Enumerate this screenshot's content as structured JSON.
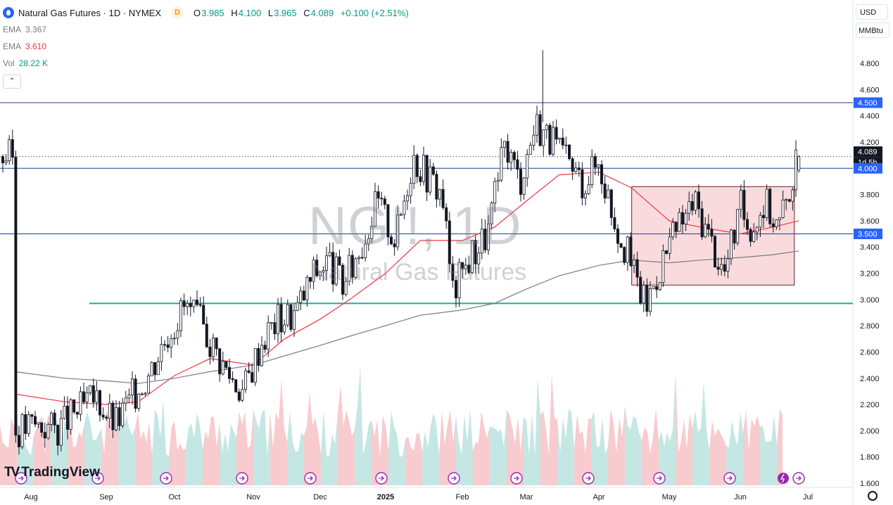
{
  "header": {
    "symbol_title": "Natural Gas Futures · 1D · NYMEX",
    "badge": "D",
    "ohlc": [
      {
        "k": "O",
        "v": "3.985"
      },
      {
        "k": "H",
        "v": "4.100"
      },
      {
        "k": "L",
        "v": "3.965"
      },
      {
        "k": "C",
        "v": "4.089"
      }
    ],
    "change": "+0.100 (+2.51%)"
  },
  "indicators": [
    {
      "name": "EMA",
      "value": "3.367",
      "color": "#787b86"
    },
    {
      "name": "EMA",
      "value": "3.610",
      "color": "#f23645"
    },
    {
      "name": "Vol",
      "value": "28.22 K",
      "color": "#089981"
    }
  ],
  "controls": {
    "currency": "USD",
    "unit": "MMBtu",
    "collapse_glyph": "⌃"
  },
  "watermark": {
    "line1": "NGI!, 1D",
    "line2": "Natural Gas Futures"
  },
  "branding": {
    "logo_mark": "TV",
    "name": "TradingView"
  },
  "chart_data": {
    "type": "candlestick",
    "ylim": [
      1.6,
      4.9
    ],
    "y_ticks": [
      "4.800",
      "4.600",
      "4.400",
      "4.200",
      "4.000",
      "3.800",
      "3.600",
      "3.400",
      "3.200",
      "3.000",
      "2.800",
      "2.600",
      "2.400",
      "2.200",
      "2.000",
      "1.800",
      "1.600"
    ],
    "x_ticks": [
      "Aug",
      "Sep",
      "Oct",
      "Nov",
      "Dec",
      "2025",
      "Feb",
      "Mar",
      "Apr",
      "May",
      "Jun",
      "Jul"
    ],
    "price_labels": [
      {
        "text": "4.500",
        "price": 4.5,
        "color": "#2962ff"
      },
      {
        "text": "4.089",
        "price": 4.089,
        "color": "#131722"
      },
      {
        "text": "1d 5h",
        "price": 4.089,
        "color": "#131722"
      },
      {
        "text": "4.000",
        "price": 4.0,
        "color": "#2962ff"
      },
      {
        "text": "3.500",
        "price": 3.5,
        "color": "#2962ff"
      }
    ],
    "horizontal_lines": [
      {
        "price": 4.5,
        "color": "#1e3f8a"
      },
      {
        "price": 4.0,
        "color": "#1e3f8a"
      },
      {
        "price": 3.5,
        "color": "#1e3f8a"
      },
      {
        "price": 2.97,
        "color": "#26a69a"
      }
    ],
    "rectangle": {
      "from": "Apr 15",
      "to": "Jun 25",
      "top": 3.86,
      "bottom": 3.11,
      "color": "#f7cfd2"
    },
    "close_path": [
      [
        "Jul 25",
        2.0
      ],
      [
        "Aug 2",
        2.05
      ],
      [
        "Aug 12",
        2.02
      ],
      [
        "Aug 20",
        2.15
      ],
      [
        "Aug 28",
        2.25
      ],
      [
        "Sep 5",
        2.05
      ],
      [
        "Sep 12",
        2.25
      ],
      [
        "Sep 20",
        2.45
      ],
      [
        "Sep 28",
        2.75
      ],
      [
        "Oct 5",
        2.95
      ],
      [
        "Oct 12",
        2.8
      ],
      [
        "Oct 20",
        2.5
      ],
      [
        "Oct 28",
        2.3
      ],
      [
        "Nov 5",
        2.7
      ],
      [
        "Nov 12",
        2.85
      ],
      [
        "Nov 20",
        2.9
      ],
      [
        "Nov 28",
        3.2
      ],
      [
        "Dec 5",
        3.3
      ],
      [
        "Dec 12",
        3.1
      ],
      [
        "Dec 20",
        3.4
      ],
      [
        "Dec 28",
        3.75
      ],
      [
        "Jan 5",
        3.45
      ],
      [
        "Jan 12",
        4.1
      ],
      [
        "Jan 18",
        3.95
      ],
      [
        "Jan 24",
        3.8
      ],
      [
        "Jan 28",
        3.05
      ],
      [
        "Feb 5",
        3.35
      ],
      [
        "Feb 12",
        3.5
      ],
      [
        "Feb 20",
        4.2
      ],
      [
        "Feb 26",
        3.9
      ],
      [
        "Mar 5",
        4.35
      ],
      [
        "Mar 10",
        4.25
      ],
      [
        "Mar 18",
        4.05
      ],
      [
        "Mar 25",
        3.9
      ],
      [
        "Apr 1",
        4.05
      ],
      [
        "Apr 8",
        3.6
      ],
      [
        "Apr 15",
        3.25
      ],
      [
        "Apr 21",
        2.95
      ],
      [
        "Apr 28",
        3.3
      ],
      [
        "May 5",
        3.55
      ],
      [
        "May 12",
        3.75
      ],
      [
        "May 18",
        3.5
      ],
      [
        "May 25",
        3.2
      ],
      [
        "Jun 1",
        3.7
      ],
      [
        "Jun 6",
        3.55
      ],
      [
        "Jun 12",
        3.75
      ],
      [
        "Jun 18",
        3.55
      ],
      [
        "Jun 22",
        3.8
      ],
      [
        "Jun 26",
        4.05
      ],
      [
        "Jun 27",
        4.089
      ]
    ],
    "series": [
      {
        "name": "EMA",
        "color": "#f23645",
        "points": [
          [
            "Jul 25",
            2.28
          ],
          [
            "Aug 15",
            2.22
          ],
          [
            "Sep 1",
            2.2
          ],
          [
            "Sep 15",
            2.22
          ],
          [
            "Oct 1",
            2.42
          ],
          [
            "Oct 15",
            2.55
          ],
          [
            "Nov 1",
            2.5
          ],
          [
            "Nov 15",
            2.7
          ],
          [
            "Dec 1",
            2.85
          ],
          [
            "Dec 15",
            3.0
          ],
          [
            "Jan 1",
            3.2
          ],
          [
            "Jan 15",
            3.45
          ],
          [
            "Feb 1",
            3.45
          ],
          [
            "Feb 15",
            3.55
          ],
          [
            "Mar 1",
            3.75
          ],
          [
            "Mar 15",
            3.95
          ],
          [
            "Apr 1",
            3.97
          ],
          [
            "Apr 15",
            3.85
          ],
          [
            "May 1",
            3.6
          ],
          [
            "May 15",
            3.55
          ],
          [
            "Jun 1",
            3.5
          ],
          [
            "Jun 15",
            3.55
          ],
          [
            "Jun 27",
            3.6
          ]
        ]
      },
      {
        "name": "EMA",
        "color": "#787b86",
        "points": [
          [
            "Jul 25",
            2.45
          ],
          [
            "Aug 15",
            2.4
          ],
          [
            "Sep 1",
            2.38
          ],
          [
            "Sep 15",
            2.36
          ],
          [
            "Oct 1",
            2.4
          ],
          [
            "Oct 15",
            2.45
          ],
          [
            "Nov 1",
            2.5
          ],
          [
            "Nov 15",
            2.57
          ],
          [
            "Dec 1",
            2.65
          ],
          [
            "Dec 15",
            2.72
          ],
          [
            "Jan 1",
            2.8
          ],
          [
            "Jan 15",
            2.88
          ],
          [
            "Feb 1",
            2.92
          ],
          [
            "Feb 15",
            2.97
          ],
          [
            "Mar 1",
            3.08
          ],
          [
            "Mar 15",
            3.18
          ],
          [
            "Apr 1",
            3.26
          ],
          [
            "Apr 15",
            3.3
          ],
          [
            "May 1",
            3.28
          ],
          [
            "May 15",
            3.3
          ],
          [
            "Jun 1",
            3.32
          ],
          [
            "Jun 15",
            3.34
          ],
          [
            "Jun 27",
            3.37
          ]
        ]
      }
    ],
    "grid": false,
    "legend": "top-left"
  }
}
